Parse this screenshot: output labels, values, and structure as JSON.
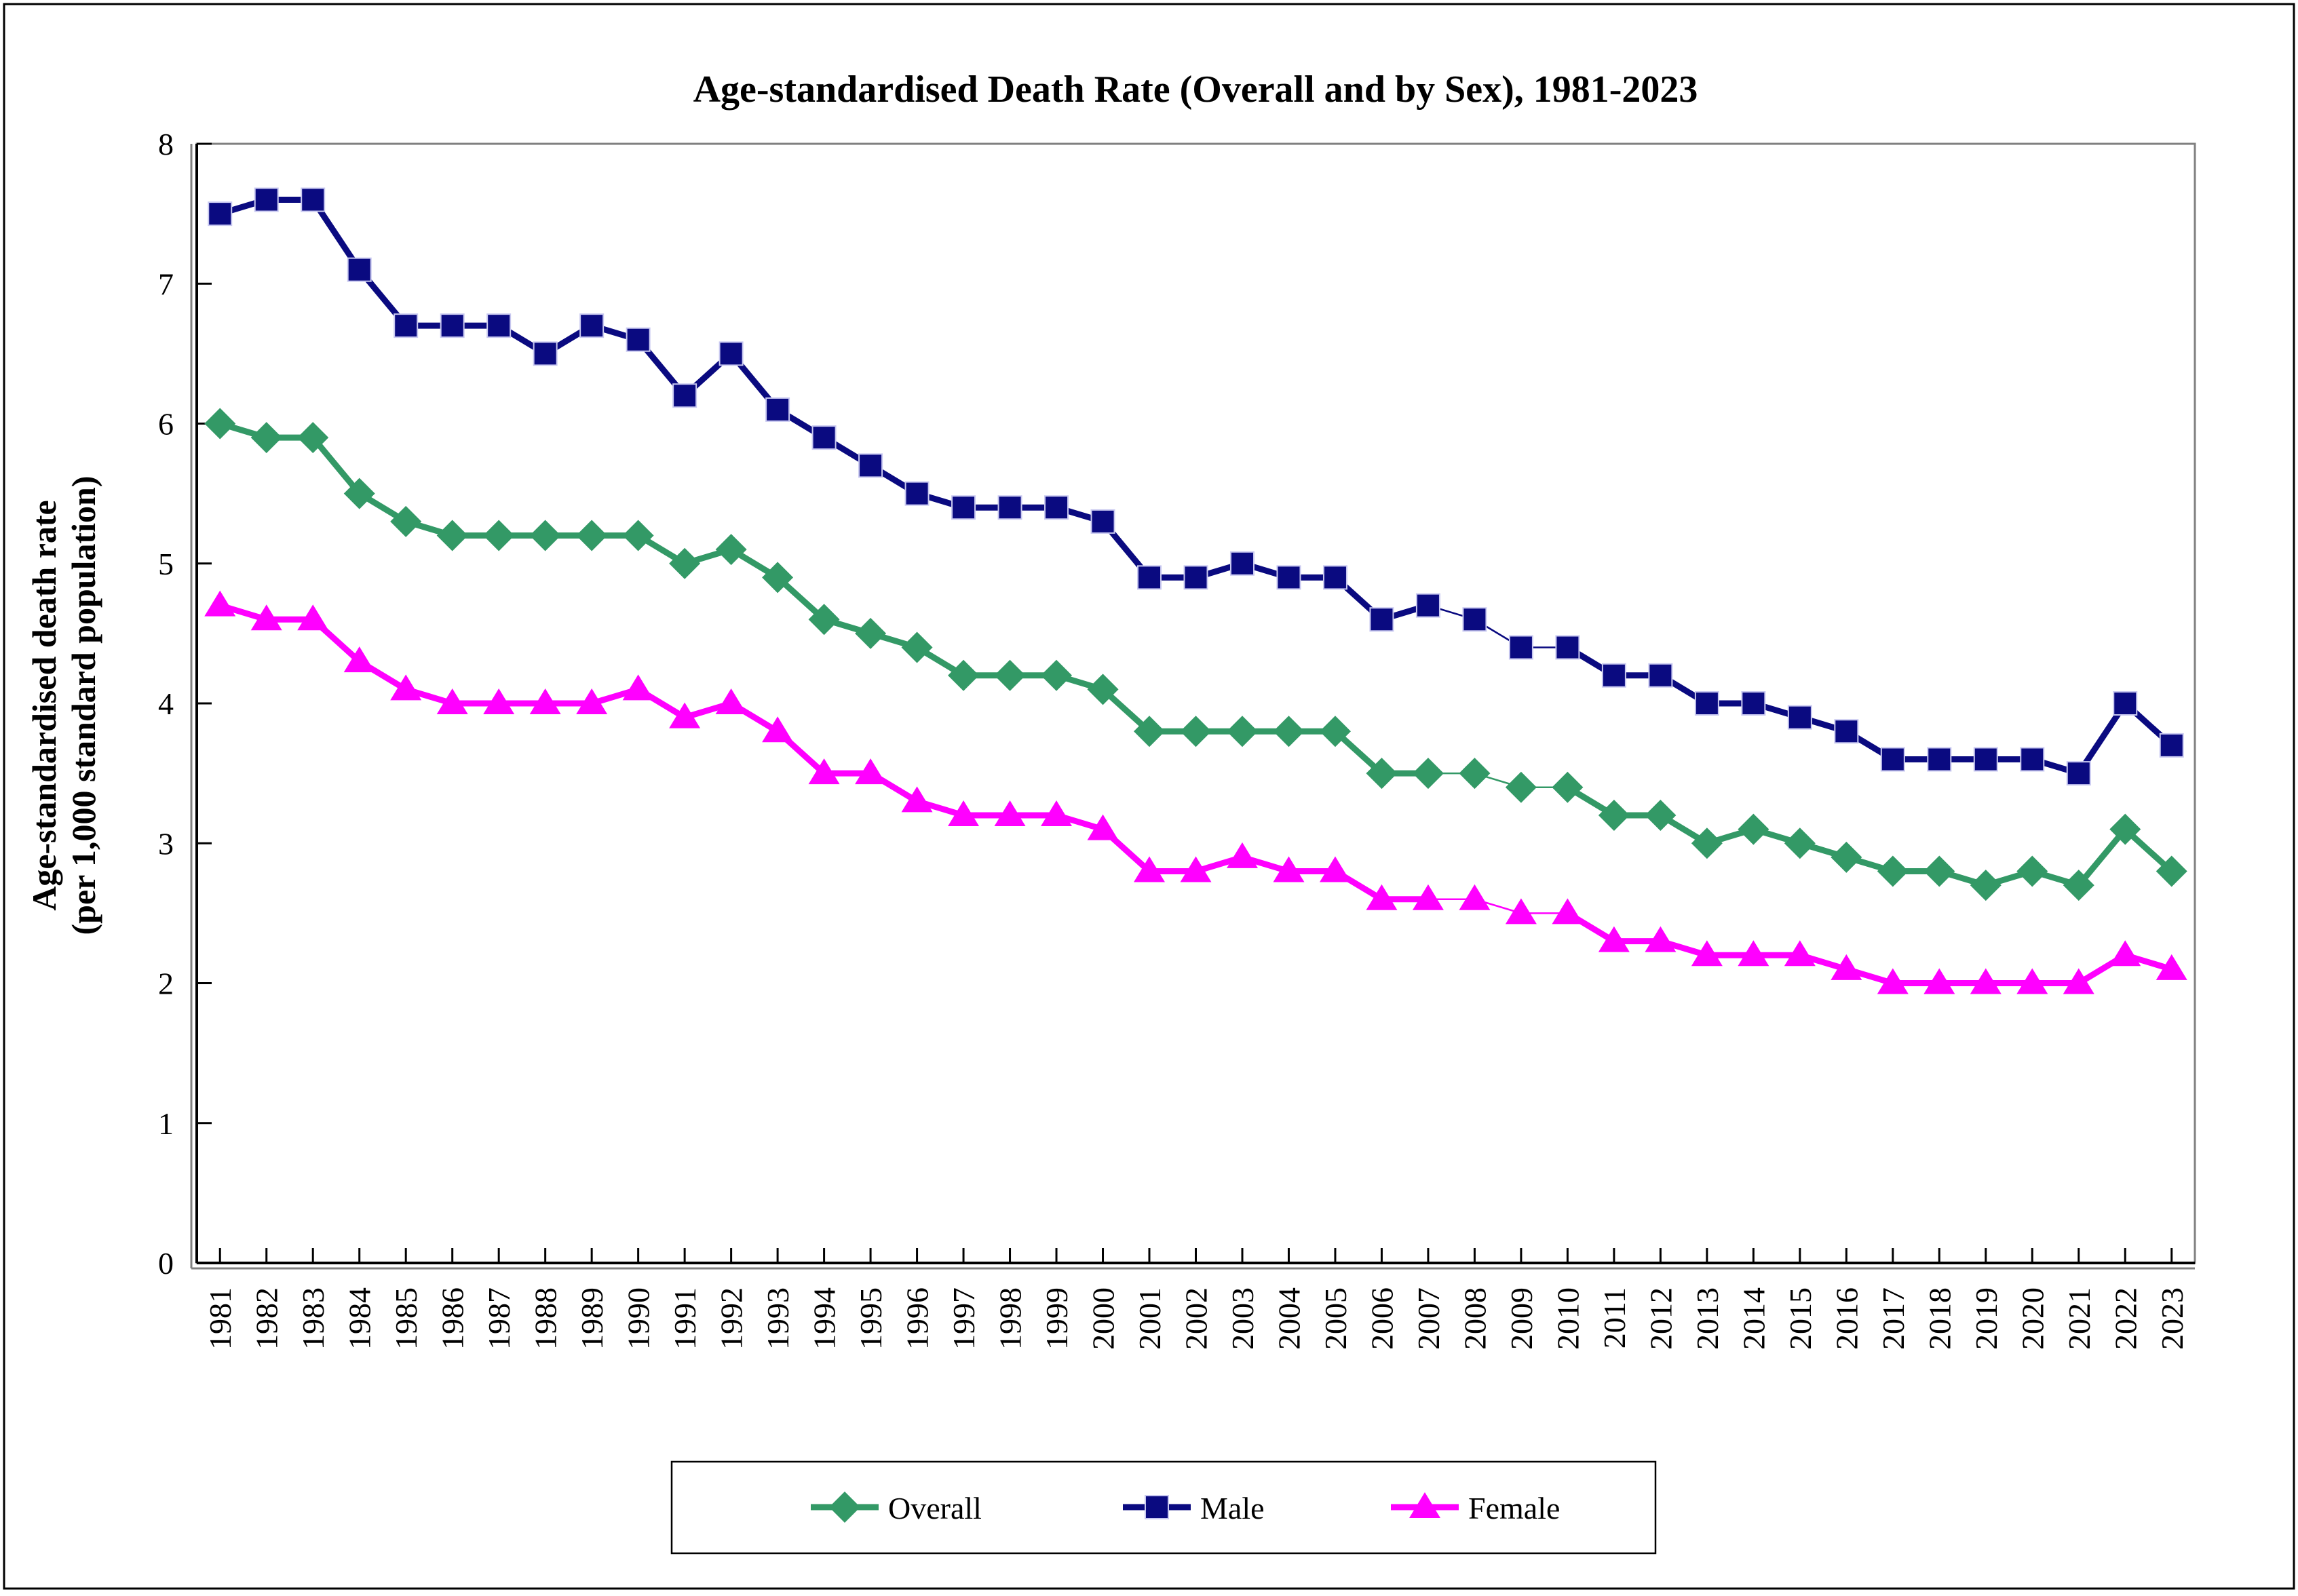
{
  "page": {
    "title": "Age-standardised Death Rate (Overall and by Sex), 1981-2023"
  },
  "axes": {
    "y_title_line1": "Age-standardised death rate",
    "y_title_line2": "(per 1,000 standard population)",
    "y_ticks": [
      0,
      1,
      2,
      3,
      4,
      5,
      6,
      7,
      8
    ],
    "x_tick_labels": [
      "1981",
      "1982",
      "1983",
      "1984",
      "1985",
      "1986",
      "1987",
      "1988",
      "1989",
      "1990",
      "1991",
      "1992",
      "1993",
      "1994",
      "1995",
      "1996",
      "1997",
      "1998",
      "1999",
      "2000",
      "2001",
      "2002",
      "2003",
      "2004",
      "2005",
      "2006",
      "2007",
      "2008",
      "2009",
      "2010",
      "2011",
      "2012",
      "2013",
      "2014",
      "2015",
      "2016",
      "2017",
      "2018",
      "2019",
      "2020",
      "2021",
      "2022",
      "2023"
    ]
  },
  "colors": {
    "overall": "#339966",
    "male": "#0a0a80",
    "female": "#ff00ff",
    "axis": "#000000",
    "axis_shadow": "#808080",
    "text": "#000000"
  },
  "legend": {
    "items": [
      {
        "label": "Overall",
        "marker": "diamond",
        "color": "#339966"
      },
      {
        "label": "Male",
        "marker": "square",
        "color": "#0a0a80"
      },
      {
        "label": "Female",
        "marker": "triangle",
        "color": "#ff00ff"
      }
    ]
  },
  "chart_data": {
    "type": "line",
    "title": "Age-standardised Death Rate (Overall and by Sex), 1981-2023",
    "xlabel": "",
    "ylabel": "Age-standardised death rate (per 1,000 standard population)",
    "ylim": [
      0,
      8
    ],
    "y_tick_step": 1,
    "grid": false,
    "legend_position": "bottom-center",
    "x": [
      1981,
      1982,
      1983,
      1984,
      1985,
      1986,
      1987,
      1988,
      1989,
      1990,
      1991,
      1992,
      1993,
      1994,
      1995,
      1996,
      1997,
      1998,
      1999,
      2000,
      2001,
      2002,
      2003,
      2004,
      2005,
      2006,
      2007,
      2008,
      2009,
      2010,
      2011,
      2012,
      2013,
      2014,
      2015,
      2016,
      2017,
      2018,
      2019,
      2020,
      2021,
      2022,
      2023
    ],
    "series": [
      {
        "name": "Overall",
        "color": "#339966",
        "marker": "diamond",
        "values": [
          6.0,
          5.9,
          5.9,
          5.5,
          5.3,
          5.2,
          5.2,
          5.2,
          5.2,
          5.2,
          5.0,
          5.1,
          4.9,
          4.6,
          4.5,
          4.4,
          4.2,
          4.2,
          4.2,
          4.1,
          3.8,
          3.8,
          3.8,
          3.8,
          3.8,
          3.5,
          3.5,
          3.5,
          3.4,
          3.4,
          3.2,
          3.2,
          3.0,
          3.1,
          3.0,
          2.9,
          2.8,
          2.8,
          2.7,
          2.8,
          2.7,
          3.1,
          2.8
        ]
      },
      {
        "name": "Male",
        "color": "#0a0a80",
        "marker": "square",
        "values": [
          7.5,
          7.6,
          7.6,
          7.1,
          6.7,
          6.7,
          6.7,
          6.5,
          6.7,
          6.6,
          6.2,
          6.5,
          6.1,
          5.9,
          5.7,
          5.5,
          5.4,
          5.4,
          5.4,
          5.3,
          4.9,
          4.9,
          5.0,
          4.9,
          4.9,
          4.6,
          4.7,
          4.6,
          4.4,
          4.4,
          4.2,
          4.2,
          4.0,
          4.0,
          3.9,
          3.8,
          3.6,
          3.6,
          3.6,
          3.6,
          3.5,
          4.0,
          3.7
        ]
      },
      {
        "name": "Female",
        "color": "#ff00ff",
        "marker": "triangle",
        "values": [
          4.7,
          4.6,
          4.6,
          4.3,
          4.1,
          4.0,
          4.0,
          4.0,
          4.0,
          4.1,
          3.9,
          4.0,
          3.8,
          3.5,
          3.5,
          3.3,
          3.2,
          3.2,
          3.2,
          3.1,
          2.8,
          2.8,
          2.9,
          2.8,
          2.8,
          2.6,
          2.6,
          2.6,
          2.5,
          2.5,
          2.3,
          2.3,
          2.2,
          2.2,
          2.2,
          2.1,
          2.0,
          2.0,
          2.0,
          2.0,
          2.0,
          2.2,
          2.1
        ]
      }
    ],
    "thin_segments": [
      [
        2007,
        2008
      ],
      [
        2008,
        2009
      ],
      [
        2009,
        2010
      ]
    ]
  }
}
